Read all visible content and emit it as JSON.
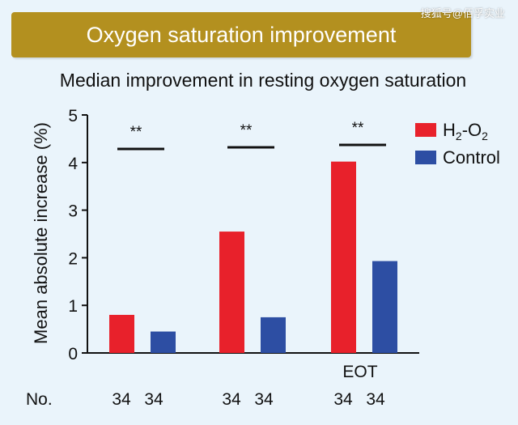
{
  "banner": {
    "title": "Oxygen saturation improvement"
  },
  "watermark": "搜狐号@佰孚实业",
  "chart_data": {
    "type": "bar",
    "title": "Median improvement in resting oxygen saturation",
    "ylabel": "Mean absolute increase (%)",
    "xlabel": "",
    "ylim": [
      0,
      5
    ],
    "yticks": [
      0,
      1,
      2,
      3,
      4,
      5
    ],
    "grid": false,
    "legend_position": "top-right",
    "categories": [
      "",
      "",
      "EOT"
    ],
    "series": [
      {
        "name": "H₂-O₂",
        "color": "#e8212b",
        "values": [
          0.8,
          2.55,
          4.02
        ]
      },
      {
        "name": "Control",
        "color": "#2d4ea3",
        "values": [
          0.45,
          0.75,
          1.93
        ]
      }
    ],
    "significance": [
      "**",
      "**",
      "**"
    ],
    "counts_label": "No.",
    "counts": [
      [
        34,
        34
      ],
      [
        34,
        34
      ],
      [
        34,
        34
      ]
    ]
  }
}
